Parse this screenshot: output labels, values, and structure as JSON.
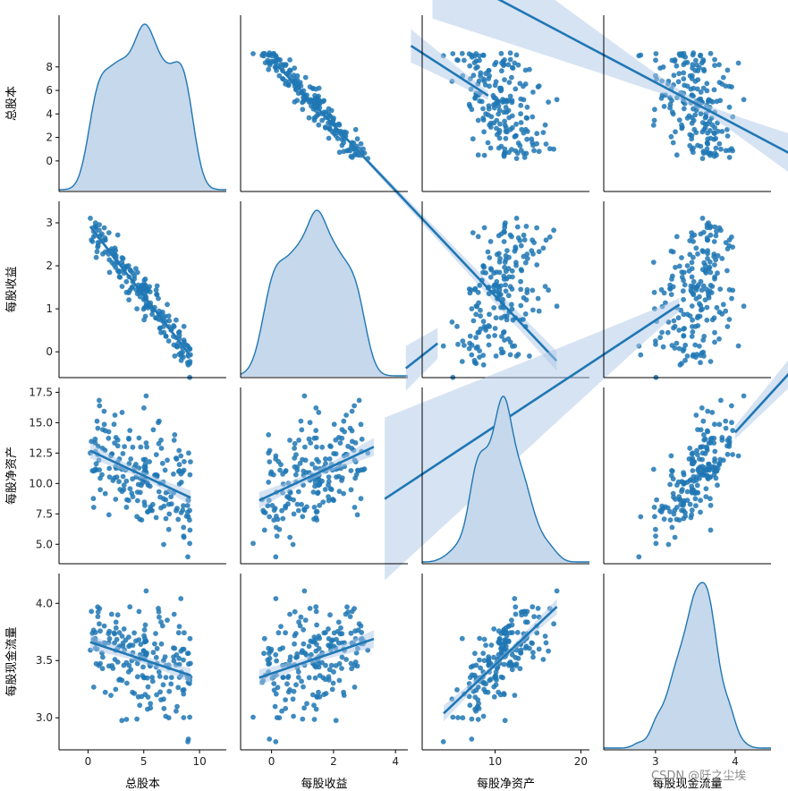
{
  "figure": {
    "type": "pairplot",
    "watermark": "CSDN @阡之尘埃",
    "colors": {
      "accent": "#1f77b4",
      "kde_fill": "#c6d8eb",
      "band": "#aec7e8",
      "axis": "#000000"
    }
  },
  "chart_data": {
    "type": "scatter",
    "variables": [
      "总股本",
      "每股收益",
      "每股净资产",
      "每股现金流量"
    ],
    "axes": [
      {
        "name": "总股本",
        "range": [
          -2.6,
          12.4
        ],
        "ticks": [
          0,
          2,
          4,
          6,
          8,
          10
        ],
        "tick_labels_x": [
          "0",
          "5",
          "10"
        ],
        "tick_labels_y": [
          "0",
          "2",
          "4",
          "6",
          "8"
        ]
      },
      {
        "name": "每股收益",
        "range": [
          -0.6,
          3.5
        ],
        "tick_labels_x": [
          "0",
          "2",
          "4"
        ],
        "tick_labels_y": [
          "0",
          "1",
          "2",
          "3"
        ]
      },
      {
        "name": "每股净资产",
        "range": [
          3.4,
          17.9
        ],
        "tick_labels_x": [
          "10",
          "20"
        ],
        "tick_labels_y": [
          "5.0",
          "7.5",
          "10.0",
          "12.5",
          "15.0",
          "17.5"
        ]
      },
      {
        "name": "每股现金流量",
        "range": [
          2.72,
          4.26
        ],
        "tick_labels_x": [
          "3",
          "4"
        ],
        "tick_labels_y": [
          "3.0",
          "3.5",
          "4.0"
        ]
      }
    ],
    "x_view": [
      [
        -2.6,
        12.4
      ],
      [
        -1.0,
        4.4
      ],
      [
        1.5,
        21.0
      ],
      [
        2.35,
        4.45
      ]
    ],
    "n_points": 200,
    "diagonal": "kde",
    "off_diagonal": "scatter with linear regression fit and confidence band",
    "sample_points": {
      "总股本_vs_每股收益": [
        [
          9.1,
          -0.4
        ],
        [
          8.0,
          0.2
        ],
        [
          6.0,
          0.8
        ],
        [
          4.0,
          1.6
        ],
        [
          2.0,
          2.3
        ],
        [
          0.6,
          2.9
        ]
      ],
      "每股净资产_vs_每股现金流量": [
        [
          5.0,
          3.0
        ],
        [
          8.0,
          3.25
        ],
        [
          10.5,
          3.5
        ],
        [
          13.0,
          3.65
        ],
        [
          16.0,
          3.85
        ]
      ]
    },
    "regression_ranges": {
      "0-1": [
        0.2,
        9.2
      ],
      "0-2": [
        0.2,
        9.2
      ],
      "0-3": [
        0.2,
        9.2
      ],
      "1-2": [
        -0.4,
        3.3
      ],
      "1-3": [
        -0.4,
        3.3
      ],
      "2-3": [
        4.0,
        17.2
      ]
    },
    "correlation": {
      "总股本|每股收益": -0.93,
      "总股本|每股净资产": -0.42,
      "总股本|每股现金流量": -0.27,
      "每股收益|每股净资产": 0.46,
      "每股收益|每股现金流量": 0.29,
      "每股净资产|每股现金流量": 0.62
    }
  }
}
